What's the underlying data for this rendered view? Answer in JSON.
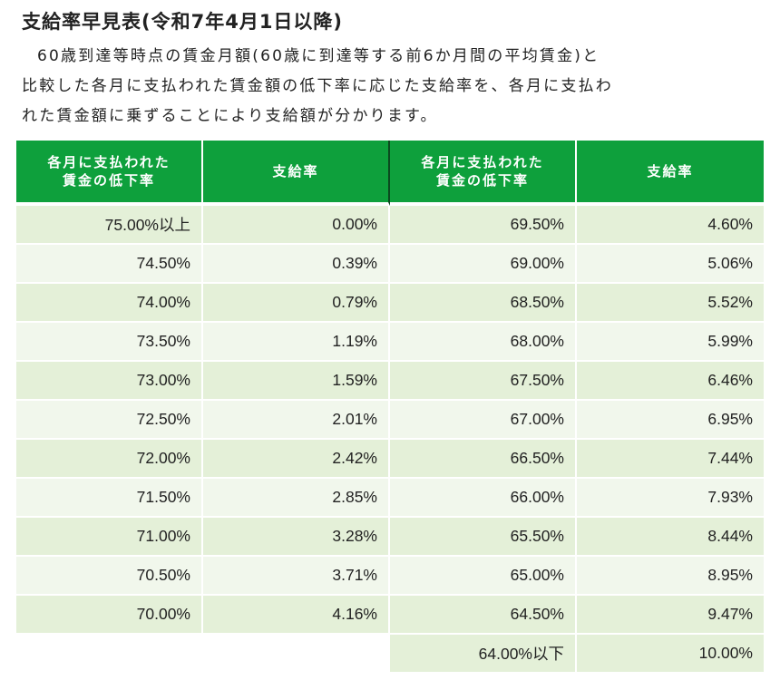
{
  "title": "支給率早見表(令和7年4月1日以降)",
  "description": [
    "60歳到達等時点の賃金月額(60歳に到達等する前6か月間の平均賃金)と",
    "比較した各月に支払われた賃金額の低下率に応じた支給率を、各月に支払わ",
    "れた賃金額に乗ずることにより支給額が分かります。"
  ],
  "table": {
    "headers": [
      {
        "line1": "各月に支払われた",
        "line2": "賃金の低下率"
      },
      {
        "line1": "支給率",
        "line2": ""
      },
      {
        "line1": "各月に支払われた",
        "line2": "賃金の低下率"
      },
      {
        "line1": "支給率",
        "line2": ""
      }
    ],
    "rows": [
      [
        "75.00%以上",
        "0.00%",
        "69.50%",
        "4.60%"
      ],
      [
        "74.50%",
        "0.39%",
        "69.00%",
        "5.06%"
      ],
      [
        "74.00%",
        "0.79%",
        "68.50%",
        "5.52%"
      ],
      [
        "73.50%",
        "1.19%",
        "68.00%",
        "5.99%"
      ],
      [
        "73.00%",
        "1.59%",
        "67.50%",
        "6.46%"
      ],
      [
        "72.50%",
        "2.01%",
        "67.00%",
        "6.95%"
      ],
      [
        "72.00%",
        "2.42%",
        "66.50%",
        "7.44%"
      ],
      [
        "71.50%",
        "2.85%",
        "66.00%",
        "7.93%"
      ],
      [
        "71.00%",
        "3.28%",
        "65.50%",
        "8.44%"
      ],
      [
        "70.50%",
        "3.71%",
        "65.00%",
        "8.95%"
      ],
      [
        "70.00%",
        "4.16%",
        "64.50%",
        "9.47%"
      ],
      [
        "",
        "",
        "64.00%以下",
        "10.00%"
      ]
    ]
  },
  "colors": {
    "header_green": "#0ea03c",
    "row_dark": "#e4f0d8",
    "row_light": "#f1f7ec"
  }
}
